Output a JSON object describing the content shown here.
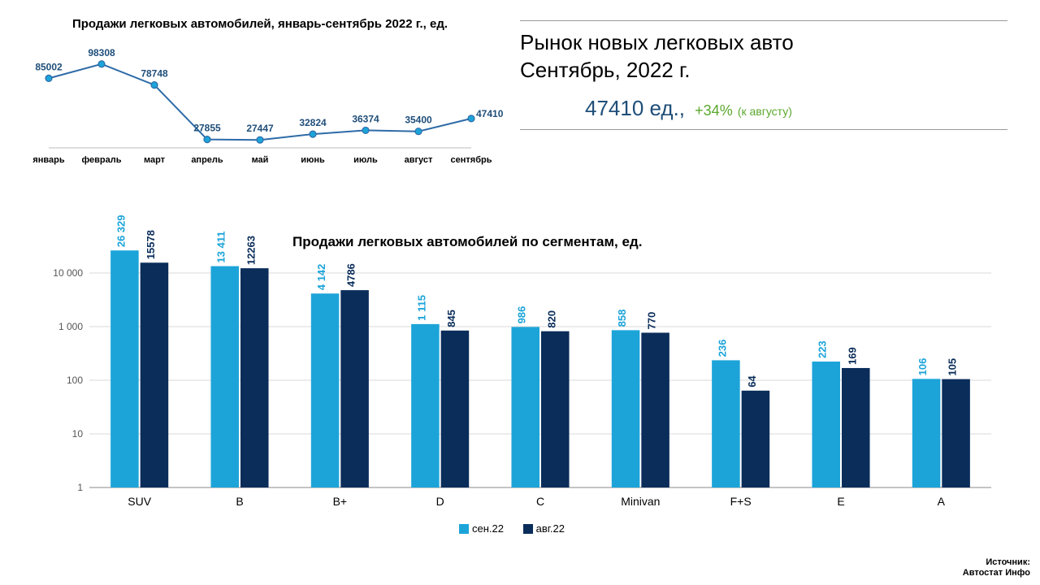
{
  "line_chart": {
    "type": "line",
    "title": "Продажи легковых автомобилей, январь-сентябрь 2022 г., ед.",
    "categories": [
      "январь",
      "февраль",
      "март",
      "апрель",
      "май",
      "июнь",
      "июль",
      "август",
      "сентябрь"
    ],
    "values": [
      85002,
      98308,
      78748,
      27855,
      27447,
      32824,
      36374,
      35400,
      47410
    ],
    "line_color": "#2E6BA8",
    "marker_fill": "#1CA4D9",
    "marker_stroke": "#2E6BA8",
    "label_color": "#1F4E79",
    "title_fontsize": 15,
    "background_color": "#ffffff",
    "ylim": [
      20000,
      105000
    ],
    "line_width": 2,
    "marker_size": 4
  },
  "headline": {
    "title_line1": "Рынок новых легковых авто",
    "title_line2": "Сентябрь, 2022 г.",
    "units_value": "47410 ед.,",
    "pct": "+34%",
    "pct_note": "(к августу)",
    "units_color": "#1F4E79",
    "pct_color": "#5BA82E",
    "rule_color": "#999999"
  },
  "bar_chart": {
    "type": "bar",
    "title": "Продажи легковых автомобилей по сегментам, ед.",
    "categories": [
      "SUV",
      "B",
      "B+",
      "D",
      "C",
      "Minivan",
      "F+S",
      "E",
      "A"
    ],
    "series": [
      {
        "name": "сен.22",
        "color": "#1CA4D9",
        "values": [
          26329,
          13411,
          4142,
          1115,
          986,
          858,
          236,
          223,
          106
        ],
        "labels": [
          "26 329",
          "13 411",
          "4 142",
          "1 115",
          "986",
          "858",
          "236",
          "223",
          "106"
        ]
      },
      {
        "name": "авг.22",
        "color": "#0A2D5A",
        "values": [
          15578,
          12263,
          4786,
          845,
          820,
          770,
          64,
          169,
          105
        ],
        "labels": [
          "15578",
          "12263",
          "4786",
          "845",
          "820",
          "770",
          "64",
          "169",
          "105"
        ]
      }
    ],
    "yscale": "log",
    "ylim": [
      1,
      100000
    ],
    "yticks": [
      1,
      10,
      100,
      1000,
      10000
    ],
    "ytick_labels": [
      "1",
      "10",
      "100",
      "1 000",
      "10 000"
    ],
    "grid_color": "#d9d9d9",
    "background_color": "#ffffff",
    "bar_width": 0.4,
    "title_fontsize": 17,
    "label_fontsize": 13
  },
  "legend": {
    "items": [
      {
        "label": "сен.22",
        "color": "#1CA4D9"
      },
      {
        "label": "авг.22",
        "color": "#0A2D5A"
      }
    ]
  },
  "source": {
    "line1": "Источник:",
    "line2": "Автостат Инфо"
  }
}
